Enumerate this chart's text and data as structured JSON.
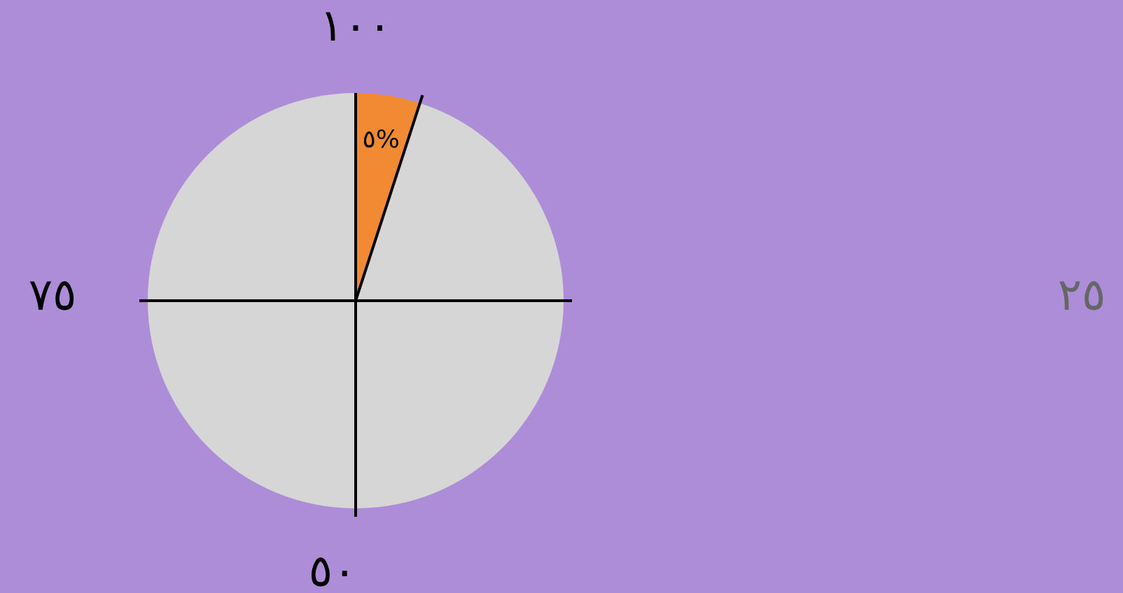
{
  "chart_data": {
    "type": "pie",
    "categories": [
      null,
      null,
      null,
      null,
      null
    ],
    "values": [
      5,
      20,
      25,
      25,
      25
    ],
    "colors": [
      "#f08a33",
      "#d6d6d6",
      "#d6d6d6",
      "#d6d6d6",
      "#d6d6d6"
    ],
    "value_labels": [
      "٥%",
      null,
      null,
      null,
      null
    ],
    "annotations": [
      "١٠٠",
      "٧٥",
      "٥٠",
      "٢٥"
    ]
  }
}
